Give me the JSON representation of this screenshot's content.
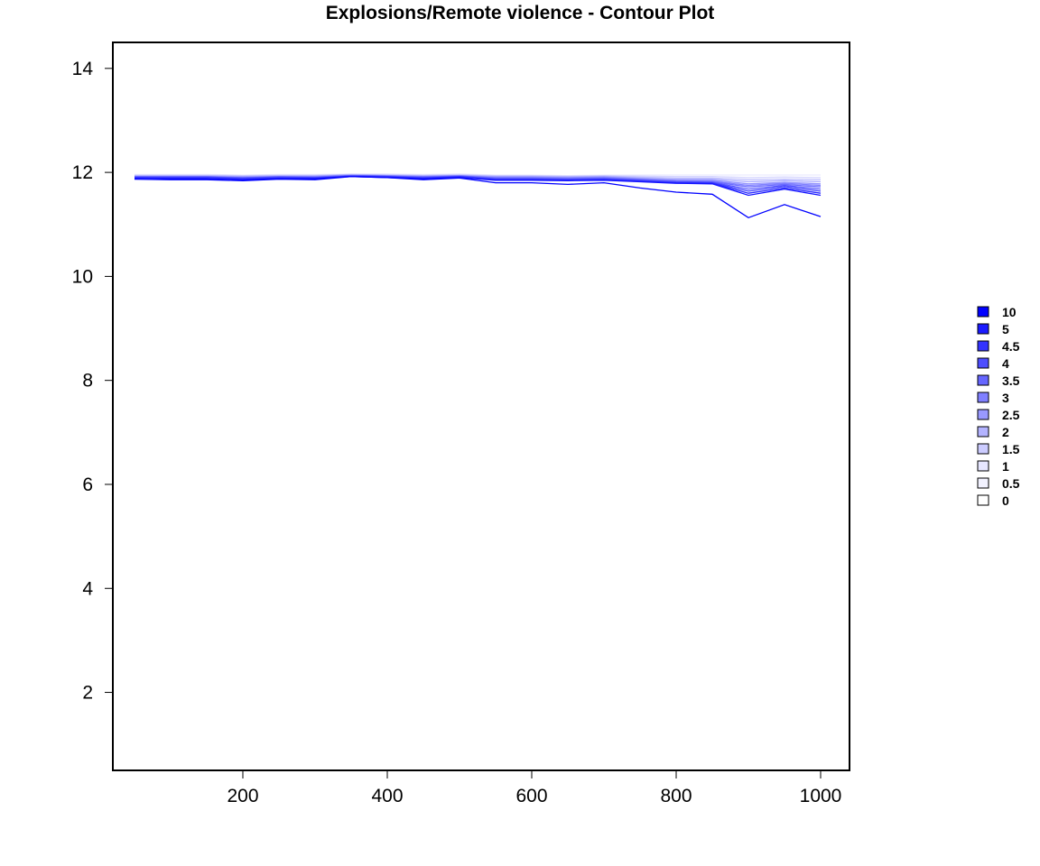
{
  "chart_data": {
    "type": "line",
    "title": "Explosions/Remote violence - Contour Plot",
    "xlabel": "",
    "ylabel": "",
    "xlim": [
      20,
      1040
    ],
    "ylim": [
      0.5,
      14.5
    ],
    "x_ticks": [
      200,
      400,
      600,
      800,
      1000
    ],
    "y_ticks": [
      2,
      4,
      6,
      8,
      10,
      12,
      14
    ],
    "x": [
      50,
      100,
      150,
      200,
      250,
      300,
      350,
      400,
      450,
      500,
      550,
      600,
      650,
      700,
      750,
      800,
      850,
      900,
      950,
      1000
    ],
    "contour_levels": [
      10,
      5,
      4.5,
      4,
      3.5,
      3,
      2.5,
      2,
      1.5,
      1,
      0.5,
      0
    ],
    "level_colors": [
      "#0000ff",
      "#1a1aff",
      "#3333ff",
      "#4d4dff",
      "#6666ff",
      "#8080ff",
      "#9999ff",
      "#b3b3ff",
      "#ccccff",
      "#e6e6ff",
      "#f2f2ff",
      "#ffffff"
    ],
    "series": [
      {
        "values": [
          11.96,
          11.96,
          11.96,
          11.95,
          11.96,
          11.96,
          11.97,
          11.97,
          11.96,
          11.97,
          11.95,
          11.95,
          11.94,
          11.95,
          11.95,
          11.95,
          11.95,
          11.95,
          11.95,
          11.95
        ]
      },
      {
        "values": [
          11.95,
          11.95,
          11.95,
          11.94,
          11.95,
          11.95,
          11.96,
          11.96,
          11.95,
          11.96,
          11.94,
          11.94,
          11.93,
          11.94,
          11.93,
          11.92,
          11.92,
          11.9,
          11.91,
          11.9
        ]
      },
      {
        "values": [
          11.94,
          11.94,
          11.94,
          11.93,
          11.94,
          11.94,
          11.96,
          11.95,
          11.94,
          11.95,
          11.93,
          11.93,
          11.92,
          11.93,
          11.91,
          11.89,
          11.89,
          11.86,
          11.87,
          11.86
        ]
      },
      {
        "values": [
          11.93,
          11.93,
          11.93,
          11.92,
          11.93,
          11.93,
          11.95,
          11.94,
          11.93,
          11.94,
          11.92,
          11.92,
          11.91,
          11.92,
          11.89,
          11.87,
          11.87,
          11.82,
          11.84,
          11.82
        ]
      },
      {
        "values": [
          11.92,
          11.92,
          11.92,
          11.91,
          11.92,
          11.92,
          11.95,
          11.94,
          11.92,
          11.94,
          11.91,
          11.91,
          11.9,
          11.91,
          11.88,
          11.85,
          11.85,
          11.78,
          11.81,
          11.78
        ]
      },
      {
        "values": [
          11.92,
          11.92,
          11.92,
          11.9,
          11.92,
          11.91,
          11.94,
          11.93,
          11.92,
          11.93,
          11.9,
          11.9,
          11.89,
          11.9,
          11.87,
          11.84,
          11.83,
          11.75,
          11.79,
          11.75
        ]
      },
      {
        "values": [
          11.91,
          11.91,
          11.91,
          11.9,
          11.91,
          11.91,
          11.94,
          11.93,
          11.91,
          11.93,
          11.89,
          11.89,
          11.88,
          11.89,
          11.86,
          11.83,
          11.82,
          11.72,
          11.77,
          11.72
        ]
      },
      {
        "values": [
          11.91,
          11.91,
          11.91,
          11.89,
          11.91,
          11.9,
          11.93,
          11.92,
          11.9,
          11.92,
          11.88,
          11.88,
          11.87,
          11.88,
          11.85,
          11.82,
          11.81,
          11.68,
          11.75,
          11.68
        ]
      },
      {
        "values": [
          11.9,
          11.9,
          11.9,
          11.88,
          11.9,
          11.89,
          11.93,
          11.92,
          11.89,
          11.92,
          11.87,
          11.87,
          11.86,
          11.87,
          11.84,
          11.81,
          11.8,
          11.64,
          11.73,
          11.64
        ]
      },
      {
        "values": [
          11.89,
          11.89,
          11.89,
          11.87,
          11.89,
          11.89,
          11.92,
          11.91,
          11.89,
          11.91,
          11.86,
          11.86,
          11.85,
          11.86,
          11.83,
          11.8,
          11.79,
          11.6,
          11.7,
          11.6
        ]
      },
      {
        "values": [
          11.89,
          11.88,
          11.88,
          11.86,
          11.88,
          11.88,
          11.92,
          11.9,
          11.88,
          11.9,
          11.85,
          11.85,
          11.84,
          11.85,
          11.82,
          11.79,
          11.78,
          11.56,
          11.68,
          11.56
        ]
      },
      {
        "values": [
          11.87,
          11.86,
          11.86,
          11.84,
          11.87,
          11.86,
          11.92,
          11.9,
          11.86,
          11.89,
          11.8,
          11.8,
          11.77,
          11.8,
          11.7,
          11.62,
          11.58,
          11.13,
          11.38,
          11.15
        ]
      }
    ]
  }
}
